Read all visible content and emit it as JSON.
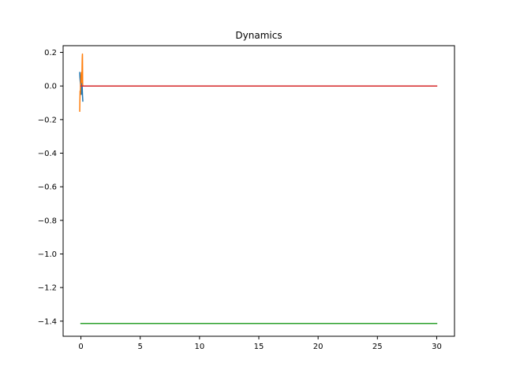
{
  "chart_data": {
    "type": "line",
    "title": "Dynamics",
    "xlabel": "",
    "ylabel": "",
    "xlim": [
      -1.5,
      31.5
    ],
    "ylim": [
      -1.49,
      0.24
    ],
    "xticks": [
      0,
      5,
      10,
      15,
      20,
      25,
      30
    ],
    "xtick_labels": [
      "0",
      "5",
      "10",
      "15",
      "20",
      "25",
      "30"
    ],
    "yticks": [
      0.2,
      0.0,
      -0.2,
      -0.4,
      -0.6,
      -0.8,
      -1.0,
      -1.2,
      -1.4
    ],
    "ytick_labels": [
      "0.2",
      "0.0",
      "−0.2",
      "−0.4",
      "−0.6",
      "−0.8",
      "−1.0",
      "−1.2",
      "−1.4"
    ],
    "grid": false,
    "series": [
      {
        "color": "#1f77b4",
        "x": [
          -0.1,
          -0.08,
          -0.05,
          -0.02,
          0.0,
          0.03,
          0.06,
          0.1,
          0.13,
          0.16
        ],
        "y": [
          0.08,
          0.05,
          0.02,
          0.0,
          -0.03,
          -0.05,
          0.03,
          0.01,
          -0.05,
          -0.09
        ]
      },
      {
        "color": "#ff7f0e",
        "x": [
          -0.1,
          -0.09,
          -0.07,
          -0.05,
          -0.03,
          -0.01,
          0.01,
          0.03,
          0.05,
          0.07,
          0.09,
          0.1,
          0.11,
          0.12,
          0.13,
          0.14,
          0.15
        ],
        "y": [
          -0.15,
          -0.1,
          -0.03,
          -0.05,
          0.0,
          0.03,
          0.06,
          0.08,
          0.05,
          0.02,
          0.08,
          0.12,
          0.16,
          0.18,
          0.19,
          0.1,
          0.0
        ]
      },
      {
        "color": "#2ca02c",
        "x": [
          0,
          30
        ],
        "y": [
          -1.414,
          -1.414
        ]
      },
      {
        "color": "#d62728",
        "x": [
          0,
          30
        ],
        "y": [
          0.0,
          0.0
        ]
      }
    ]
  }
}
